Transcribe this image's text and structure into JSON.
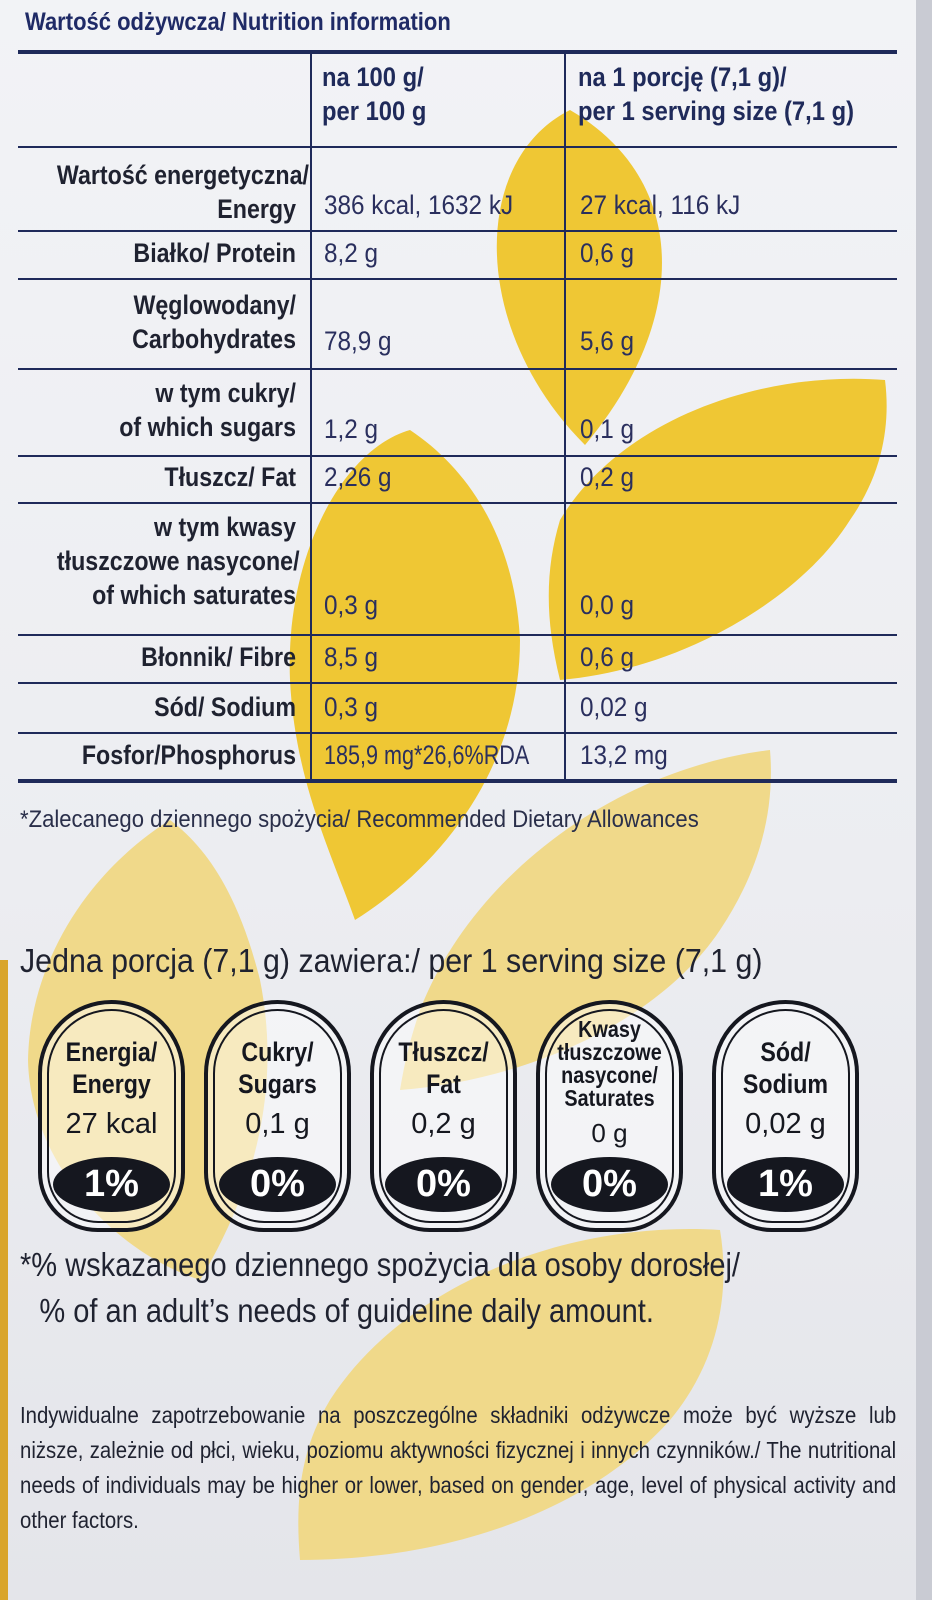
{
  "table": {
    "title": "Wartość odżywcza/ Nutrition information",
    "col_100g": [
      "na 100 g/",
      "per 100 g"
    ],
    "col_serving": [
      "na 1 porcję (7,1 g)/",
      "per 1 serving size (7,1 g)"
    ],
    "rows": [
      {
        "label": [
          "Wartość energetyczna/",
          "Energy"
        ],
        "per100": "386 kcal, 1632 kJ",
        "serving": "27 kcal, 116 kJ"
      },
      {
        "label": [
          "Białko/ Protein"
        ],
        "per100": "8,2 g",
        "serving": "0,6 g"
      },
      {
        "label": [
          "Węglowodany/",
          "Carbohydrates"
        ],
        "per100": "78,9 g",
        "serving": "5,6 g"
      },
      {
        "label": [
          "w tym cukry/",
          "of which sugars"
        ],
        "per100": "1,2 g",
        "serving": "0,1 g"
      },
      {
        "label": [
          "Tłuszcz/ Fat"
        ],
        "per100": "2,26 g",
        "serving": "0,2 g"
      },
      {
        "label": [
          "w tym kwasy",
          "tłuszczowe nasycone/",
          "of which saturates"
        ],
        "per100": "0,3 g",
        "serving": "0,0 g"
      },
      {
        "label": [
          "Błonnik/ Fibre"
        ],
        "per100": "8,5 g",
        "serving": "0,6 g"
      },
      {
        "label": [
          "Sód/ Sodium"
        ],
        "per100": "0,3 g",
        "serving": "0,02 g"
      },
      {
        "label": [
          "Fosfor/Phosphorus"
        ],
        "per100": "185,9 mg*26,6%RDA",
        "serving": "13,2 mg"
      }
    ]
  },
  "footnote": "*Zalecanego dziennego spożycia/ Recommended Dietary Allowances",
  "serving_title": "Jedna porcja (7,1 g) zawiera:/ per 1 serving size (7,1 g)",
  "gda": [
    {
      "name": [
        "Energia/",
        "Energy"
      ],
      "amount": "27 kcal",
      "percent": "1%"
    },
    {
      "name": [
        "Cukry/",
        "Sugars"
      ],
      "amount": "0,1 g",
      "percent": "0%"
    },
    {
      "name": [
        "Tłuszcz/",
        "Fat"
      ],
      "amount": "0,2 g",
      "percent": "0%"
    },
    {
      "name": [
        "Kwasy",
        "tłuszczowe",
        "nasycone/",
        "Saturates"
      ],
      "amount": "0 g",
      "percent": "0%"
    },
    {
      "name": [
        "Sód/",
        "Sodium"
      ],
      "amount": "0,02 g",
      "percent": "1%"
    }
  ],
  "gda_note": [
    "*% wskazanego dziennego spożycia dla osoby dorosłej/",
    "% of an adult’s needs of guideline daily amount."
  ],
  "disclaimer": "Indywidualne zapotrzebowanie na poszczególne składniki odżywcze może być wyższe lub niższe, zależnie od płci, wieku, poziomu aktywności fizycznej i innych czynników./ The nutritional needs of individuals may be higher or lower, based on gender, age, level of physical activity and other factors.",
  "colors": {
    "leaf": "#efc734",
    "leaf_light": "#f0d98a",
    "ink": "#1f2a5a"
  }
}
